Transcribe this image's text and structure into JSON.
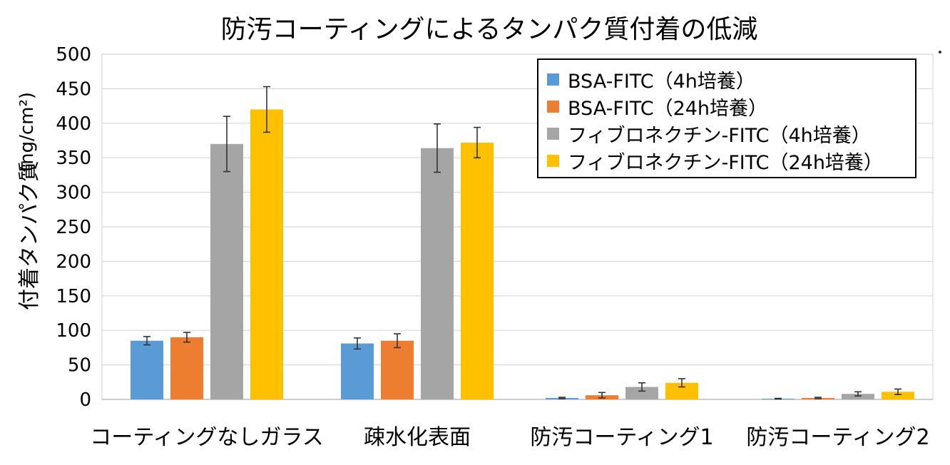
{
  "chart_data": {
    "type": "bar",
    "title": "防汚コーティングによるタンパク質付着の低減",
    "ylabel": "付着タンパク質",
    "yunit": "(ng/cm²)",
    "ylim": [
      0,
      500
    ],
    "yticks": [
      0,
      50,
      100,
      150,
      200,
      250,
      300,
      350,
      400,
      450,
      500
    ],
    "grid": true,
    "legend_position": "top-right",
    "categories": [
      "コーティングなしガラス",
      "疎水化表面",
      "防汚コーティング1",
      "防汚コーティング2"
    ],
    "series": [
      {
        "name": "BSA-FITC（4h培養）",
        "color": "#5b9bd5",
        "values": [
          85,
          81,
          2,
          1
        ],
        "errors": [
          6,
          8,
          1,
          0.5
        ]
      },
      {
        "name": "BSA-FITC（24h培養）",
        "color": "#ed7d31",
        "values": [
          90,
          85,
          6,
          2
        ],
        "errors": [
          7,
          10,
          4,
          1
        ]
      },
      {
        "name": "フィブロネクチン-FITC（4h培養）",
        "color": "#a5a5a5",
        "values": [
          370,
          364,
          18,
          8
        ],
        "errors": [
          40,
          35,
          6,
          3
        ]
      },
      {
        "name": "フィブロネクチン-FITC（24h培養）",
        "color": "#ffc000",
        "values": [
          420,
          372,
          24,
          11
        ],
        "errors": [
          33,
          22,
          6,
          4
        ]
      }
    ]
  }
}
